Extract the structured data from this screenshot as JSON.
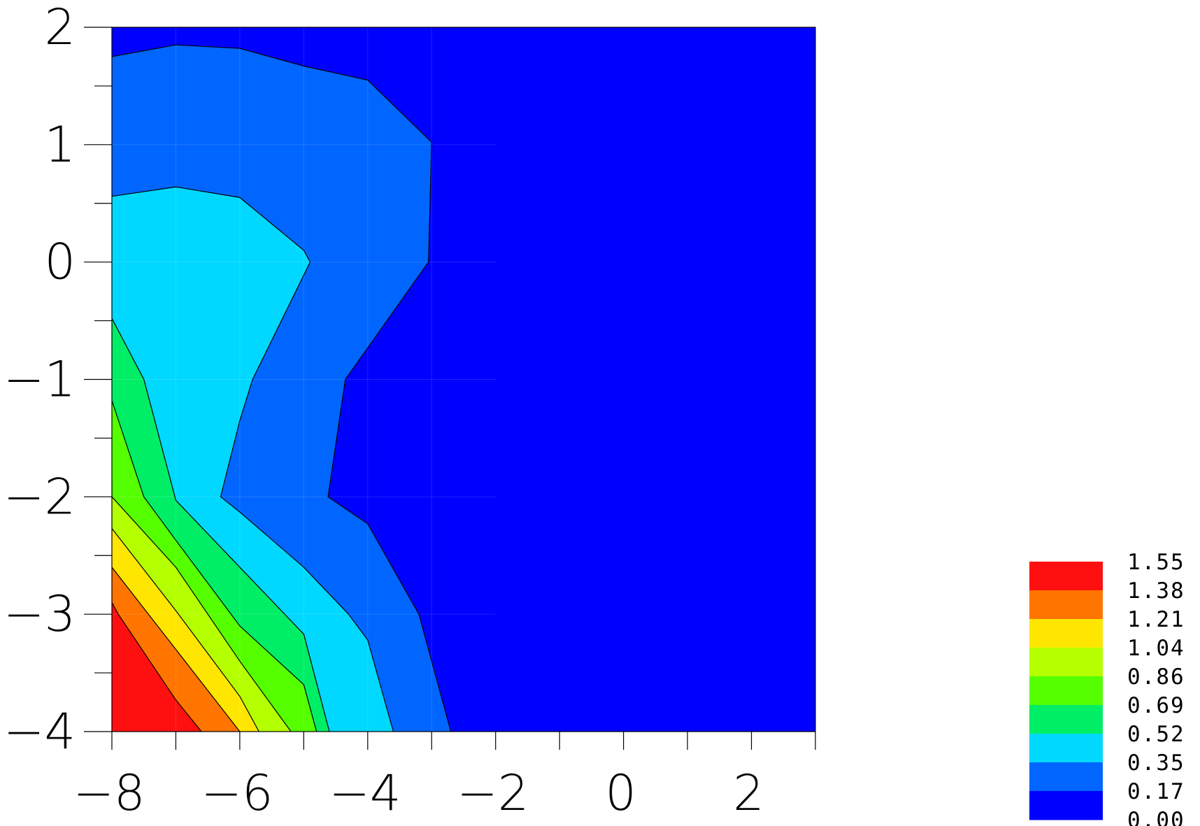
{
  "chart_data": {
    "type": "contour",
    "title": "",
    "xlabel": "",
    "ylabel": "",
    "xlim": [
      -8,
      3
    ],
    "ylim": [
      -4,
      2
    ],
    "x_ticks": [
      -8,
      -6,
      -4,
      -2,
      0,
      2
    ],
    "x_tick_labels": [
      "−8",
      "−6",
      "−4",
      "−2",
      "0",
      "2"
    ],
    "x_minor_ticks": [
      -7,
      -5,
      -3,
      -1,
      1,
      3
    ],
    "y_ticks": [
      -4,
      -3,
      -2,
      -1,
      0,
      1,
      2
    ],
    "y_tick_labels": [
      "−4",
      "−3",
      "−2",
      "−1",
      "0",
      "1",
      "2"
    ],
    "y_minor_ticks": [
      -3.5,
      -2.5,
      -1.5,
      -0.5,
      0.5,
      1.5
    ],
    "grid": false,
    "legend_position": "bottom-right",
    "levels": [
      0.0,
      0.17,
      0.35,
      0.52,
      0.69,
      0.86,
      1.04,
      1.21,
      1.38,
      1.55
    ],
    "level_labels": [
      "1.55",
      "1.38",
      "1.21",
      "1.04",
      "0.86",
      "0.69",
      "0.52",
      "0.35",
      "0.17",
      "0.00"
    ],
    "level_colors": [
      "#0000ff",
      "#0066ff",
      "#00d8ff",
      "#00ee66",
      "#55ff00",
      "#b4ff00",
      "#ffe600",
      "#ff7500",
      "#ff1010"
    ],
    "contour_lines": [
      {
        "level": 0.17,
        "points": [
          [
            -8,
            1.75
          ],
          [
            -7,
            1.85
          ],
          [
            -6,
            1.82
          ],
          [
            -5,
            1.67
          ],
          [
            -4,
            1.55
          ],
          [
            -3,
            1.02
          ],
          [
            -3.05,
            0
          ],
          [
            -4.35,
            -1
          ],
          [
            -4.62,
            -2
          ],
          [
            -4,
            -2.23
          ],
          [
            -3.2,
            -3
          ],
          [
            -2.7,
            -4
          ]
        ]
      },
      {
        "level": 0.35,
        "points": [
          [
            -8,
            0.56
          ],
          [
            -7,
            0.64
          ],
          [
            -6,
            0.55
          ],
          [
            -5,
            0.1
          ],
          [
            -4.9,
            0
          ],
          [
            -5.8,
            -1
          ],
          [
            -6,
            -1.35
          ],
          [
            -6.3,
            -2
          ],
          [
            -6,
            -2.13
          ],
          [
            -5,
            -2.6
          ],
          [
            -4.3,
            -3
          ],
          [
            -4,
            -3.22
          ],
          [
            -3.6,
            -4
          ]
        ]
      },
      {
        "level": 0.52,
        "points": [
          [
            -8,
            -0.48
          ],
          [
            -7.5,
            -1
          ],
          [
            -7,
            -2.03
          ],
          [
            -6,
            -2.6
          ],
          [
            -5,
            -3.17
          ],
          [
            -4.6,
            -4
          ]
        ]
      },
      {
        "level": 0.69,
        "points": [
          [
            -8,
            -1.18
          ],
          [
            -7.5,
            -2
          ],
          [
            -7,
            -2.37
          ],
          [
            -6,
            -3.1
          ],
          [
            -5,
            -3.6
          ],
          [
            -4.8,
            -4
          ]
        ]
      },
      {
        "level": 0.86,
        "points": [
          [
            -8,
            -1.85
          ],
          [
            -8,
            -2
          ],
          [
            -7,
            -2.6
          ],
          [
            -6,
            -3.4
          ],
          [
            -5.2,
            -4
          ]
        ]
      },
      {
        "level": 1.04,
        "points": [
          [
            -8,
            -2.27
          ],
          [
            -7,
            -2.97
          ],
          [
            -6,
            -3.7
          ],
          [
            -5.7,
            -4
          ]
        ]
      },
      {
        "level": 1.21,
        "points": [
          [
            -8,
            -2.6
          ],
          [
            -7,
            -3.3
          ],
          [
            -6,
            -4
          ]
        ]
      },
      {
        "level": 1.38,
        "points": [
          [
            -8,
            -2.9
          ],
          [
            -7.9,
            -3
          ],
          [
            -7,
            -3.73
          ],
          [
            -6.6,
            -4
          ]
        ]
      }
    ]
  }
}
